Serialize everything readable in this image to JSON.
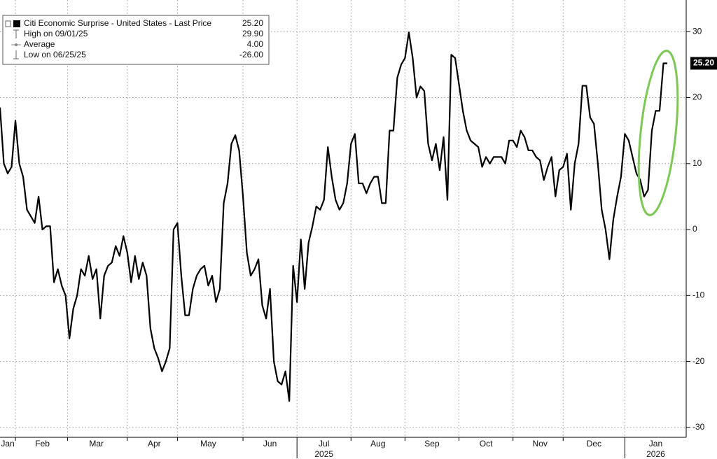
{
  "chart_data": {
    "type": "line",
    "legend": [
      {
        "name": "Citi Economic Surprise - United States - Last Price",
        "value": {
          "value": 25.2,
          "label": "25.20"
        }
      },
      {
        "name": "High on 09/01/25",
        "value": {
          "value": 29.9,
          "label": "29.90"
        }
      },
      {
        "name": "Average",
        "value": {
          "value": 4,
          "label": "4.00"
        }
      },
      {
        "name": "Low on 06/25/25",
        "value": {
          "value": -26,
          "label": "-26.00"
        }
      }
    ],
    "categories": [
      null,
      null,
      "Jan",
      null,
      null,
      null,
      null,
      null,
      null,
      null,
      null,
      "Feb",
      null,
      null,
      null,
      null,
      null,
      null,
      null,
      null,
      null,
      null,
      null,
      null,
      null,
      "Mar",
      null,
      null,
      null,
      null,
      null,
      null,
      null,
      null,
      null,
      null,
      null,
      null,
      null,
      null,
      "Apr",
      null,
      null,
      null,
      null,
      null,
      null,
      null,
      null,
      null,
      null,
      null,
      null,
      null,
      "May",
      null,
      null,
      null,
      null,
      null,
      null,
      null,
      null,
      null,
      null,
      null,
      null,
      null,
      null,
      null,
      "Jun",
      null,
      null,
      null,
      null,
      null,
      null,
      null,
      null,
      null,
      null,
      null,
      null,
      null,
      "Jul",
      null,
      null,
      null,
      null,
      null,
      null,
      null,
      null,
      null,
      null,
      null,
      null,
      null,
      "Aug",
      null,
      null,
      null,
      null,
      null,
      null,
      null,
      null,
      null,
      null,
      null,
      null,
      null,
      "Sep",
      null,
      null,
      null,
      null,
      null,
      null,
      null,
      null,
      null,
      null,
      null,
      null,
      null,
      "Oct",
      null,
      null,
      null,
      null,
      null,
      null,
      null,
      null,
      null,
      null,
      null,
      null,
      null,
      "Nov",
      null,
      null,
      null,
      null,
      null,
      null,
      null,
      null,
      null,
      null,
      null,
      null,
      null,
      "Dec",
      null,
      null,
      null,
      null,
      null,
      null,
      null,
      null,
      null,
      null,
      null,
      null,
      null,
      null,
      null,
      "Jan",
      null,
      null,
      null
    ],
    "years": [
      null,
      null,
      null,
      null,
      null,
      null,
      null,
      null,
      null,
      null,
      null,
      null,
      null,
      null,
      null,
      null,
      null,
      null,
      null,
      null,
      null,
      null,
      null,
      null,
      null,
      null,
      null,
      null,
      null,
      null,
      null,
      null,
      null,
      null,
      null,
      null,
      null,
      null,
      null,
      null,
      null,
      null,
      null,
      null,
      null,
      null,
      null,
      null,
      null,
      null,
      null,
      null,
      null,
      null,
      null,
      null,
      null,
      null,
      null,
      null,
      null,
      null,
      null,
      null,
      null,
      null,
      null,
      null,
      null,
      null,
      null,
      null,
      null,
      null,
      null,
      null,
      null,
      null,
      null,
      null,
      null,
      null,
      null,
      null,
      "2025",
      null,
      null,
      null,
      null,
      null,
      null,
      null,
      null,
      null,
      null,
      null,
      null,
      null,
      null,
      null,
      null,
      null,
      null,
      null,
      null,
      null,
      null,
      null,
      null,
      null,
      null,
      null,
      null,
      null,
      null,
      null,
      null,
      null,
      null,
      null,
      null,
      null,
      null,
      null,
      null,
      null,
      null,
      null,
      null,
      null,
      null,
      null,
      null,
      null,
      null,
      null,
      null,
      null,
      null,
      null,
      null,
      null,
      null,
      null,
      null,
      null,
      null,
      null,
      null,
      null,
      null,
      null,
      null,
      null,
      null,
      null,
      null,
      null,
      null,
      null,
      null,
      null,
      null,
      null,
      null,
      null,
      null,
      null,
      null,
      null,
      "2026",
      null,
      null,
      null
    ],
    "series": [
      {
        "name": "Citi Economic Surprise - United States - Last Price",
        "color": "#000000",
        "values": [
          18.5,
          10,
          8.5,
          9.5,
          16.5,
          10,
          8,
          3,
          2,
          1,
          5,
          0,
          0.5,
          0.5,
          -8,
          -6,
          -8.5,
          -10,
          -16.5,
          -12,
          -10,
          -6,
          -7,
          -4,
          -7.5,
          -6,
          -13.5,
          -7,
          -5.5,
          -5,
          -2.5,
          -4,
          -1,
          -3.5,
          -8,
          -4,
          -7.5,
          -5,
          -7,
          -15,
          -18,
          -19.5,
          -21.5,
          -20,
          -18,
          0,
          1,
          -7,
          -13,
          -13,
          -9,
          -7,
          -6,
          -5.5,
          -8.5,
          -7,
          -11,
          -9,
          4,
          7,
          13,
          14.3,
          12,
          5,
          -3.5,
          -7,
          -6,
          -4.5,
          -11.5,
          -13.5,
          -9,
          -20,
          -23,
          -23.5,
          -21.5,
          -26,
          -5.5,
          -11,
          -1.5,
          -9,
          -2,
          0.5,
          3.5,
          3,
          4.5,
          12.5,
          8,
          4.5,
          3,
          4,
          7,
          13,
          14.5,
          7,
          7,
          5.5,
          7,
          8,
          8,
          4,
          4,
          15,
          15,
          23,
          25,
          26,
          29.9,
          26,
          20,
          21.7,
          21,
          13,
          10.5,
          13,
          9,
          14,
          4.5,
          26.5,
          26,
          22,
          18,
          15,
          13.5,
          13,
          12.5,
          9.5,
          11,
          10,
          11,
          11,
          11,
          10,
          13.5,
          13.5,
          12.5,
          15,
          14,
          12,
          12,
          11,
          10.5,
          7.5,
          9.5,
          11,
          5,
          9,
          9.5,
          11.5,
          3,
          10,
          13,
          21.8,
          21.8,
          17,
          16,
          10,
          3,
          0,
          -4.5,
          1.5,
          5,
          8,
          14.5,
          13.5,
          11,
          8.5,
          7.5,
          5,
          6,
          15,
          18,
          18,
          25.2,
          25.2
        ]
      }
    ],
    "ylim": [
      -31.5,
      34.8
    ],
    "yticks": [
      -30,
      -20,
      -10,
      0,
      10,
      20,
      30
    ],
    "y_axis_side": "right",
    "grid": true
  }
}
